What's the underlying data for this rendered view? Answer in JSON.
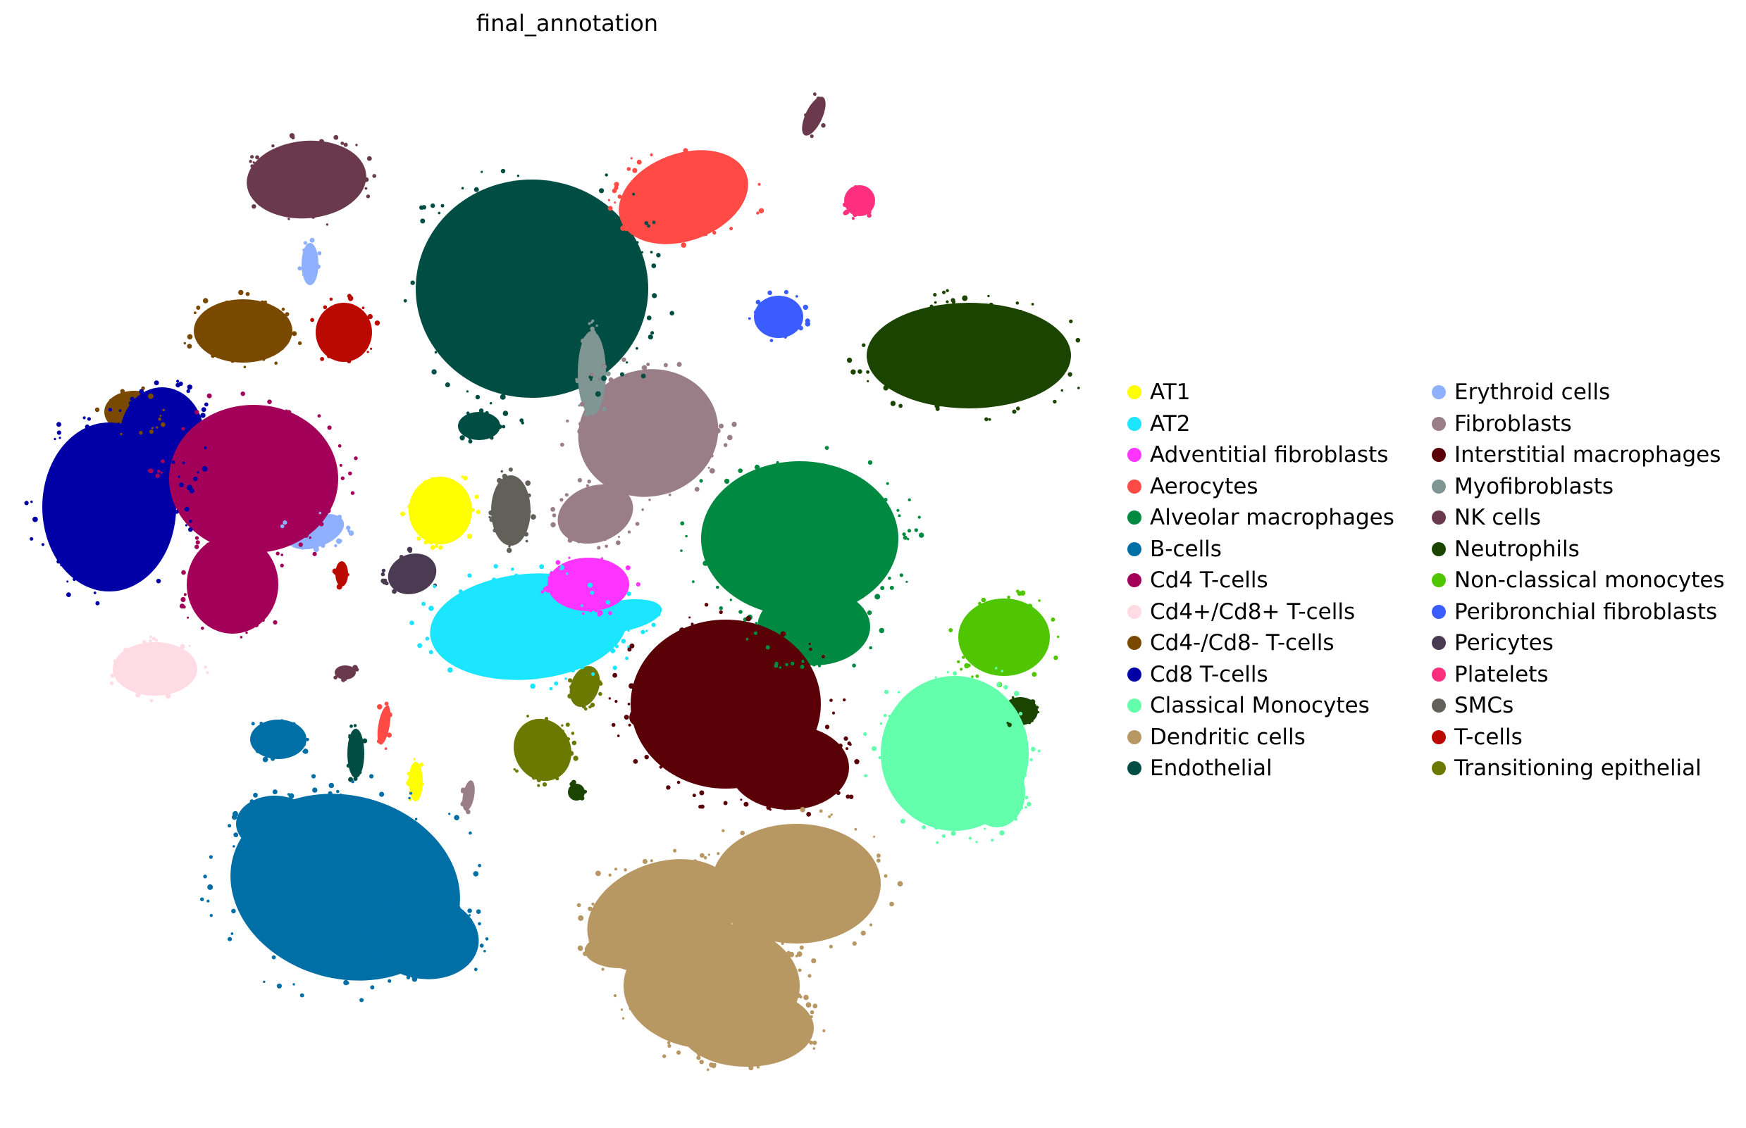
{
  "chart_data": {
    "type": "scatter",
    "title": "final_annotation",
    "xlabel": "",
    "ylabel": "",
    "axes_visible": false,
    "grid": false,
    "legend_placement": "right",
    "legend_columns": 2,
    "categories": [
      {
        "name": "AT1",
        "color": "#ffff00"
      },
      {
        "name": "AT2",
        "color": "#1ce6ff"
      },
      {
        "name": "Adventitial fibroblasts",
        "color": "#ff34ff"
      },
      {
        "name": "Aerocytes",
        "color": "#ff4a46"
      },
      {
        "name": "Alveolar macrophages",
        "color": "#008941"
      },
      {
        "name": "B-cells",
        "color": "#006fa6"
      },
      {
        "name": "Cd4 T-cells",
        "color": "#a30059"
      },
      {
        "name": "Cd4+/Cd8+ T-cells",
        "color": "#ffdbe5"
      },
      {
        "name": "Cd4-/Cd8- T-cells",
        "color": "#7a4900"
      },
      {
        "name": "Cd8 T-cells",
        "color": "#0000a6"
      },
      {
        "name": "Classical Monocytes",
        "color": "#63ffac"
      },
      {
        "name": "Dendritic cells",
        "color": "#b79762"
      },
      {
        "name": "Endothelial",
        "color": "#004d43"
      },
      {
        "name": "Erythroid cells",
        "color": "#8fb0ff"
      },
      {
        "name": "Fibroblasts",
        "color": "#997d87"
      },
      {
        "name": "Interstitial macrophages",
        "color": "#5a0007"
      },
      {
        "name": "Myofibroblasts",
        "color": "#809693"
      },
      {
        "name": "NK cells",
        "color": "#6a3a4c"
      },
      {
        "name": "Neutrophils",
        "color": "#1b4400"
      },
      {
        "name": "Non-classical monocytes",
        "color": "#4fc601"
      },
      {
        "name": "Peribronchial fibroblasts",
        "color": "#3b5dff"
      },
      {
        "name": "Pericytes",
        "color": "#4a3b53"
      },
      {
        "name": "Platelets",
        "color": "#ff2f80"
      },
      {
        "name": "SMCs",
        "color": "#61615a"
      },
      {
        "name": "T-cells",
        "color": "#ba0900"
      },
      {
        "name": "Transitioning epithelial",
        "color": "#6b7900"
      }
    ]
  }
}
